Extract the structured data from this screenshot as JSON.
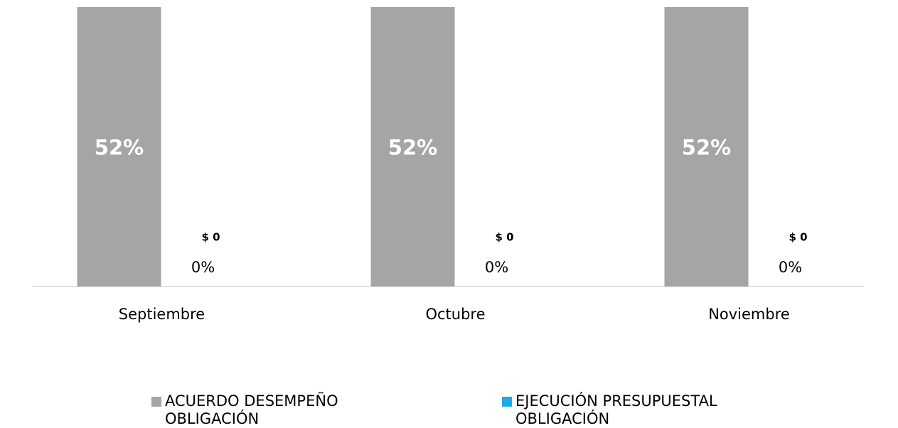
{
  "chart_data": {
    "type": "bar",
    "categories": [
      "Septiembre",
      "Octubre",
      "Noviembre"
    ],
    "series": [
      {
        "name": "ACUERDO DESEMPEÑO OBLIGACIÓN",
        "color": "#a5a5a5",
        "values": [
          52,
          52,
          52
        ],
        "value_labels": [
          "52%",
          "52%",
          "52%"
        ]
      },
      {
        "name": "EJECUCIÓN PRESUPUESTAL OBLIGACIÓN",
        "color": "#1ba9e8",
        "values": [
          0,
          0,
          0
        ],
        "value_labels": [
          "0%",
          "0%",
          "0%"
        ]
      }
    ],
    "annotations": [
      "$ 0",
      "$ 0",
      "$ 0"
    ],
    "ylim": [
      0,
      52
    ]
  }
}
